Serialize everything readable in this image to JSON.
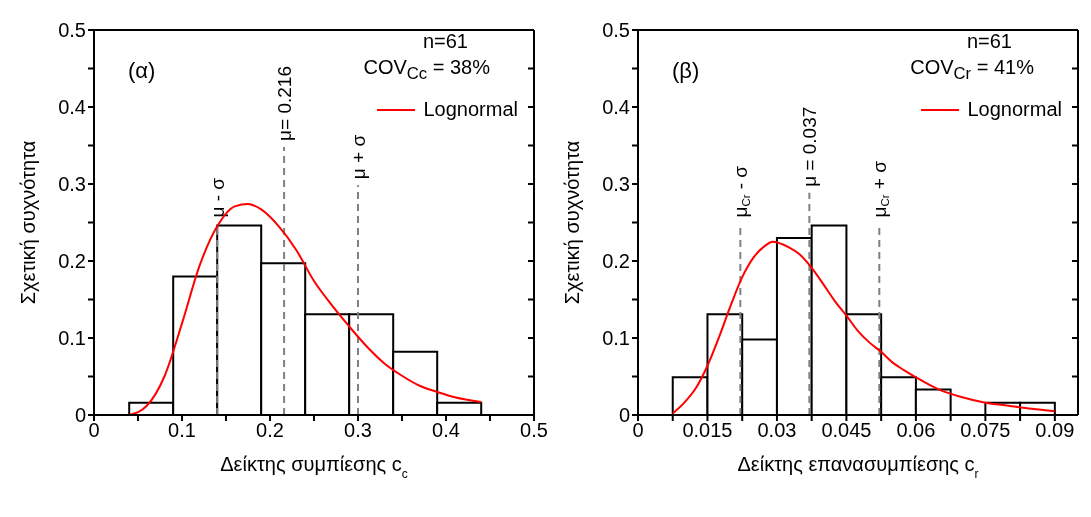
{
  "chart_data": [
    {
      "type": "histogram",
      "xlabel": "Δείκτης συμπίεσης c$_{c}$",
      "ylabel": "Σχετική συχνότητα",
      "color": "#000000",
      "bins": [
        0.04,
        0.09,
        0.14,
        0.19,
        0.24,
        0.29,
        0.34,
        0.39,
        0.44
      ],
      "values": [
        0.016,
        0.18,
        0.246,
        0.197,
        0.131,
        0.131,
        0.082,
        0.016
      ],
      "series": [
        {
          "type": "line",
          "name": "Lognormal",
          "color": "#ff0000",
          "x": [
            0.04,
            0.06,
            0.08,
            0.1,
            0.12,
            0.14,
            0.16,
            0.175,
            0.19,
            0.21,
            0.23,
            0.25,
            0.27,
            0.29,
            0.31,
            0.33,
            0.35,
            0.37,
            0.39,
            0.41,
            0.44
          ],
          "values": [
            0,
            0.012,
            0.05,
            0.119,
            0.194,
            0.245,
            0.271,
            0.274,
            0.267,
            0.245,
            0.214,
            0.174,
            0.143,
            0.115,
            0.089,
            0.067,
            0.051,
            0.038,
            0.03,
            0.023,
            0.017
          ]
        }
      ],
      "xlim": [
        0,
        0.5
      ],
      "ylim": [
        0,
        0.5
      ],
      "xticks": [
        0,
        {
          "value": 0.05,
          "label": null
        },
        0.1,
        {
          "value": 0.15,
          "label": null
        },
        0.2,
        {
          "value": 0.25,
          "label": null
        },
        0.3,
        {
          "value": 0.35,
          "label": null
        },
        0.4,
        {
          "value": 0.45,
          "label": null
        },
        0.5
      ],
      "yticks": [
        0,
        {
          "value": 0.05,
          "label": null
        },
        0.1,
        {
          "value": 0.15,
          "label": null
        },
        0.2,
        {
          "value": 0.25,
          "label": null
        },
        0.3,
        {
          "value": 0.35,
          "label": null
        },
        0.4,
        {
          "value": 0.45,
          "label": null
        },
        0.5
      ],
      "ref_lines": [
        {
          "axis": "x",
          "value": 0.14,
          "label": "μ - σ",
          "color": "#808080",
          "line_style": "dashed"
        },
        {
          "axis": "x",
          "value": 0.216,
          "label": "μ= 0.216",
          "color": "#808080",
          "line_style": "dashed"
        },
        {
          "axis": "x",
          "value": 0.3,
          "label": "μ + σ",
          "color": "#808080",
          "line_style": "dashed"
        }
      ],
      "annotations": [
        "(α)",
        "n=61",
        "COV$_{Cc}$ = 38%"
      ],
      "legend": "top right"
    },
    {
      "type": "histogram",
      "xlabel": "Δείκτης επανασυμπίεσης c$_{r}$",
      "ylabel": "Σχετική συχνότητα",
      "color": "#000000",
      "bins": [
        0.0075,
        0.015,
        0.0225,
        0.03,
        0.0375,
        0.045,
        0.0525,
        0.06,
        0.0675,
        0.075,
        0.0825,
        0.09
      ],
      "values": [
        0.049,
        0.131,
        0.098,
        0.23,
        0.246,
        0.131,
        0.049,
        0.033,
        0,
        0.016,
        0.016
      ],
      "series": [
        {
          "type": "line",
          "name": "Lognormal",
          "color": "#ff0000",
          "x": [
            0.0075,
            0.01,
            0.0125,
            0.015,
            0.0175,
            0.02,
            0.0225,
            0.025,
            0.0275,
            0.029,
            0.0325,
            0.035,
            0.0375,
            0.04,
            0.0425,
            0.045,
            0.0475,
            0.05,
            0.0525,
            0.055,
            0.0575,
            0.06,
            0.065,
            0.07,
            0.075,
            0.08,
            0.085,
            0.09
          ],
          "values": [
            0.002,
            0.016,
            0.035,
            0.064,
            0.101,
            0.142,
            0.179,
            0.205,
            0.22,
            0.225,
            0.218,
            0.208,
            0.191,
            0.17,
            0.148,
            0.129,
            0.109,
            0.094,
            0.082,
            0.068,
            0.058,
            0.049,
            0.033,
            0.023,
            0.016,
            0.012,
            0.008,
            0.005
          ]
        }
      ],
      "xlim": [
        0,
        0.095
      ],
      "ylim": [
        0,
        0.5
      ],
      "xticks": [
        0,
        {
          "value": 0.0075,
          "label": null
        },
        0.015,
        {
          "value": 0.0225,
          "label": null
        },
        0.03,
        {
          "value": 0.0375,
          "label": null
        },
        0.045,
        {
          "value": 0.0525,
          "label": null
        },
        0.06,
        {
          "value": 0.0675,
          "label": null
        },
        0.075,
        {
          "value": 0.0825,
          "label": null
        },
        0.09
      ],
      "yticks": [
        0,
        {
          "value": 0.05,
          "label": null
        },
        0.1,
        {
          "value": 0.15,
          "label": null
        },
        0.2,
        {
          "value": 0.25,
          "label": null
        },
        0.3,
        {
          "value": 0.35,
          "label": null
        },
        0.4,
        {
          "value": 0.45,
          "label": null
        },
        0.5
      ],
      "ref_lines": [
        {
          "axis": "x",
          "value": 0.0221,
          "label": "μ$_{Cr}$ - σ",
          "color": "#808080",
          "line_style": "dashed"
        },
        {
          "axis": "x",
          "value": 0.037,
          "label": "μ = 0.037",
          "color": "#808080",
          "line_style": "dashed"
        },
        {
          "axis": "x",
          "value": 0.0521,
          "label": "μ$_{Cr}$ + σ",
          "color": "#808080",
          "line_style": "dashed"
        }
      ],
      "annotations": [
        "(β)",
        "n=61",
        "COV$_{Cr}$ = 41%"
      ],
      "legend": "top right"
    }
  ]
}
